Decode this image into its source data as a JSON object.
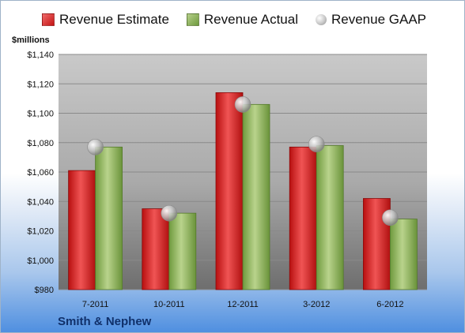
{
  "chart_data": {
    "type": "bar",
    "units": "$millions",
    "categories": [
      "7-2011",
      "10-2011",
      "12-2011",
      "3-2012",
      "6-2012"
    ],
    "series": [
      {
        "name": "Revenue Estimate",
        "kind": "bar",
        "color": "#d42020",
        "values": [
          1061,
          1035,
          1114,
          1077,
          1042
        ]
      },
      {
        "name": "Revenue Actual",
        "kind": "bar",
        "color": "#8cb050",
        "values": [
          1077,
          1032,
          1106,
          1078,
          1028
        ]
      },
      {
        "name": "Revenue GAAP",
        "kind": "marker",
        "color": "#b8b8b8",
        "values": [
          1077,
          1032,
          1106,
          1079,
          1029
        ]
      }
    ],
    "ylim": [
      980,
      1140
    ],
    "yticks": [
      980,
      1000,
      1020,
      1040,
      1060,
      1080,
      1100,
      1120,
      1140
    ],
    "ytick_labels": [
      "$980",
      "$1,000",
      "$1,020",
      "$1,040",
      "$1,060",
      "$1,080",
      "$1,100",
      "$1,120",
      "$1,140"
    ],
    "legend_position": "top",
    "grid": true,
    "company": "Smith & Nephew"
  }
}
